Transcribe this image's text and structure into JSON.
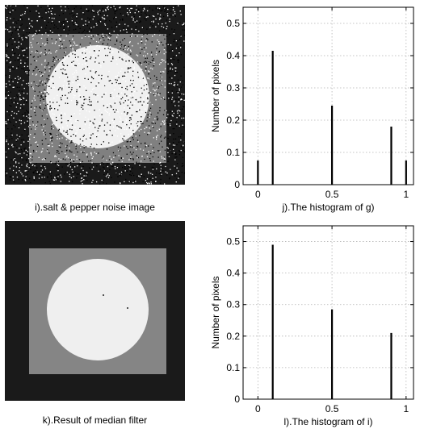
{
  "captions": {
    "i": "i).salt & pepper noise image",
    "k": "k).Result of median filter"
  },
  "colors": {
    "noise_bg": "#1a1a1a",
    "square": "#808080",
    "circle": "#f0f0f0",
    "filtered_bg": "#1a1a1a",
    "filtered_square": "#858585",
    "filtered_circle": "#efefef",
    "stem": "#000000",
    "grid": "#b3b3b3"
  },
  "chart_data": [
    {
      "type": "bar",
      "x": [
        0,
        0.1,
        0.5,
        0.9,
        1
      ],
      "values": [
        0.075,
        0.415,
        0.245,
        0.18,
        0.075
      ],
      "xlabel": "j).The histogram of g)",
      "ylabel": "Number of pixels",
      "xlim": [
        -0.1,
        1.05
      ],
      "ylim": [
        0,
        0.55
      ],
      "xticks": [
        0,
        0.5,
        1
      ],
      "xtick_labels": [
        "0",
        "0.5",
        "1"
      ],
      "yticks": [
        0,
        0.1,
        0.2,
        0.3,
        0.4,
        0.5
      ],
      "ytick_labels": [
        "0",
        "0.1",
        "0.2",
        "0.3",
        "0.4",
        "0.5"
      ],
      "grid": true
    },
    {
      "type": "bar",
      "x": [
        0.1,
        0.5,
        0.9
      ],
      "values": [
        0.49,
        0.285,
        0.21
      ],
      "xlabel": "l).The histogram of i)",
      "ylabel": "Number of pixels",
      "xlim": [
        -0.1,
        1.05
      ],
      "ylim": [
        0,
        0.55
      ],
      "xticks": [
        0,
        0.5,
        1
      ],
      "xtick_labels": [
        "0",
        "0.5",
        "1"
      ],
      "yticks": [
        0,
        0.1,
        0.2,
        0.3,
        0.4,
        0.5
      ],
      "ytick_labels": [
        "0",
        "0.1",
        "0.2",
        "0.3",
        "0.4",
        "0.5"
      ],
      "grid": true
    }
  ]
}
